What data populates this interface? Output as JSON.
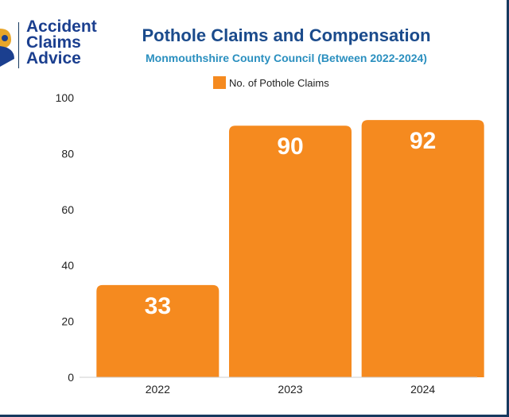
{
  "logo": {
    "lines": [
      "Accident",
      "Claims",
      "Advice"
    ]
  },
  "chart_data": {
    "type": "bar",
    "title": "Pothole Claims and Compensation",
    "subtitle": "Monmouthshire County Council (Between 2022-2024)",
    "categories": [
      "2022",
      "2023",
      "2024"
    ],
    "series": [
      {
        "name": "No. of Pothole Claims",
        "values": [
          33,
          90,
          92
        ]
      }
    ],
    "ylim": [
      0,
      100
    ],
    "yticks": [
      0,
      20,
      40,
      60,
      80,
      100
    ],
    "xlabel": "",
    "ylabel": "",
    "grid": false,
    "legend": "top-center",
    "data_labels": [
      "33",
      "90",
      "92"
    ]
  },
  "colors": {
    "bar": "#f58a1f",
    "title": "#1b4b8c",
    "subtitle": "#2a8fbf",
    "label": "#ffffff",
    "axis_text": "#222222"
  }
}
